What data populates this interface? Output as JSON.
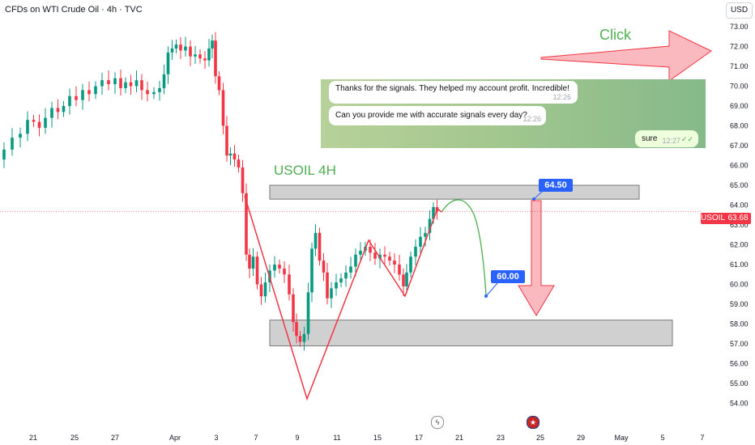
{
  "header": {
    "title": "CFDs on WTI Crude Oil · 4h · TVC",
    "currency": "USD"
  },
  "annotations": {
    "click_text": "Click",
    "chart_label": "USOIL 4H",
    "target_high": "64.50",
    "target_low": "60.00"
  },
  "price_tag": {
    "symbol": "USOIL",
    "value": "63.68"
  },
  "chat": {
    "messages": [
      {
        "text": "Thanks for the signals. They helped my account profit. Incredible!",
        "time": "12:26",
        "from": "other"
      },
      {
        "text": "Can you provide me with accurate signals every day?",
        "time": "12:26",
        "from": "other"
      },
      {
        "text": "sure",
        "time": "12:27",
        "from": "me"
      }
    ]
  },
  "events": {
    "lightning_icon": "lightning-icon",
    "us_flag_icon": "us-flag-icon"
  },
  "colors": {
    "up": "#089981",
    "down": "#f23645",
    "zone": "#c8c8c8",
    "accent": "#2962ff",
    "green_text": "#4caf50"
  },
  "chart_data": {
    "type": "candlestick",
    "title": "CFDs on WTI Crude Oil · 4h · TVC",
    "ylim": [
      54,
      73.5
    ],
    "y_ticks": [
      "73.00",
      "72.00",
      "71.00",
      "70.00",
      "69.00",
      "68.00",
      "67.00",
      "66.00",
      "65.00",
      "64.00",
      "63.00",
      "62.00",
      "61.00",
      "60.00",
      "59.00",
      "58.00",
      "57.00",
      "56.00",
      "55.00",
      "54.00"
    ],
    "x_ticks": [
      "21",
      "25",
      "27",
      "Apr",
      "3",
      "7",
      "9",
      "11",
      "15",
      "17",
      "21",
      "23",
      "25",
      "29",
      "May",
      "5",
      "7"
    ],
    "current_price": 63.68,
    "resistance_zone": [
      64.3,
      65.0
    ],
    "support_zone": [
      56.9,
      58.2
    ],
    "targets": [
      64.5,
      60.0
    ]
  }
}
